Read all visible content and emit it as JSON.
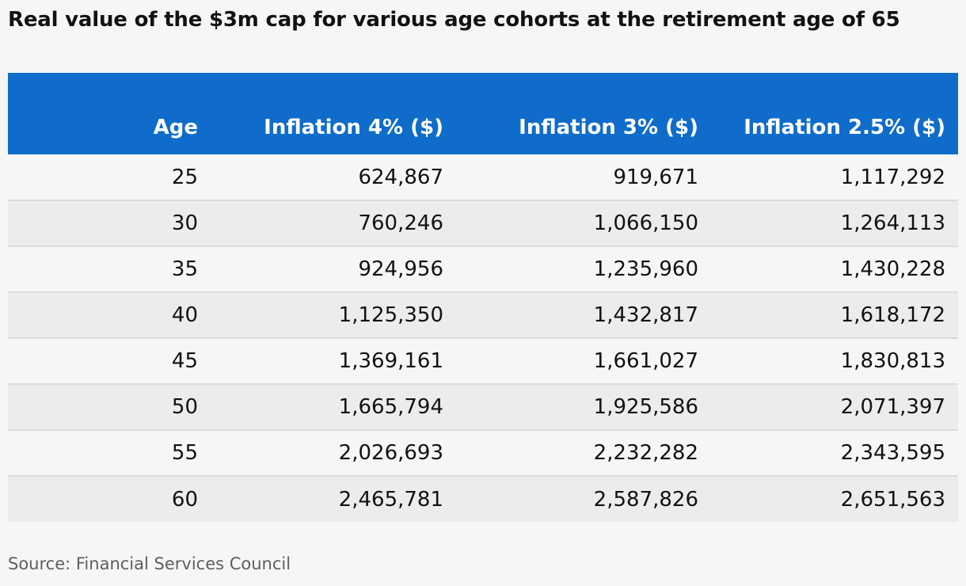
{
  "title": "Real value of the $3m cap for various age cohorts at the retirement age of 65",
  "source": "Source: Financial Services Council",
  "colors": {
    "header_bg": "#0f6ccb",
    "header_text": "#ffffff",
    "row_alt_bg": "#ececec",
    "page_bg": "#f6f6f6"
  },
  "chart_data": {
    "type": "table",
    "title": "Real value of the $3m cap for various age cohorts at the retirement age of 65",
    "columns": [
      "Age",
      "Inflation 4% ($)",
      "Inflation 3% ($)",
      "Inflation 2.5% ($)"
    ],
    "rows": [
      [
        "25",
        "624,867",
        "919,671",
        "1,117,292"
      ],
      [
        "30",
        "760,246",
        "1,066,150",
        "1,264,113"
      ],
      [
        "35",
        "924,956",
        "1,235,960",
        "1,430,228"
      ],
      [
        "40",
        "1,125,350",
        "1,432,817",
        "1,618,172"
      ],
      [
        "45",
        "1,369,161",
        "1,661,027",
        "1,830,813"
      ],
      [
        "50",
        "1,665,794",
        "1,925,586",
        "2,071,397"
      ],
      [
        "55",
        "2,026,693",
        "2,232,282",
        "2,343,595"
      ],
      [
        "60",
        "2,465,781",
        "2,587,826",
        "2,651,563"
      ]
    ]
  }
}
